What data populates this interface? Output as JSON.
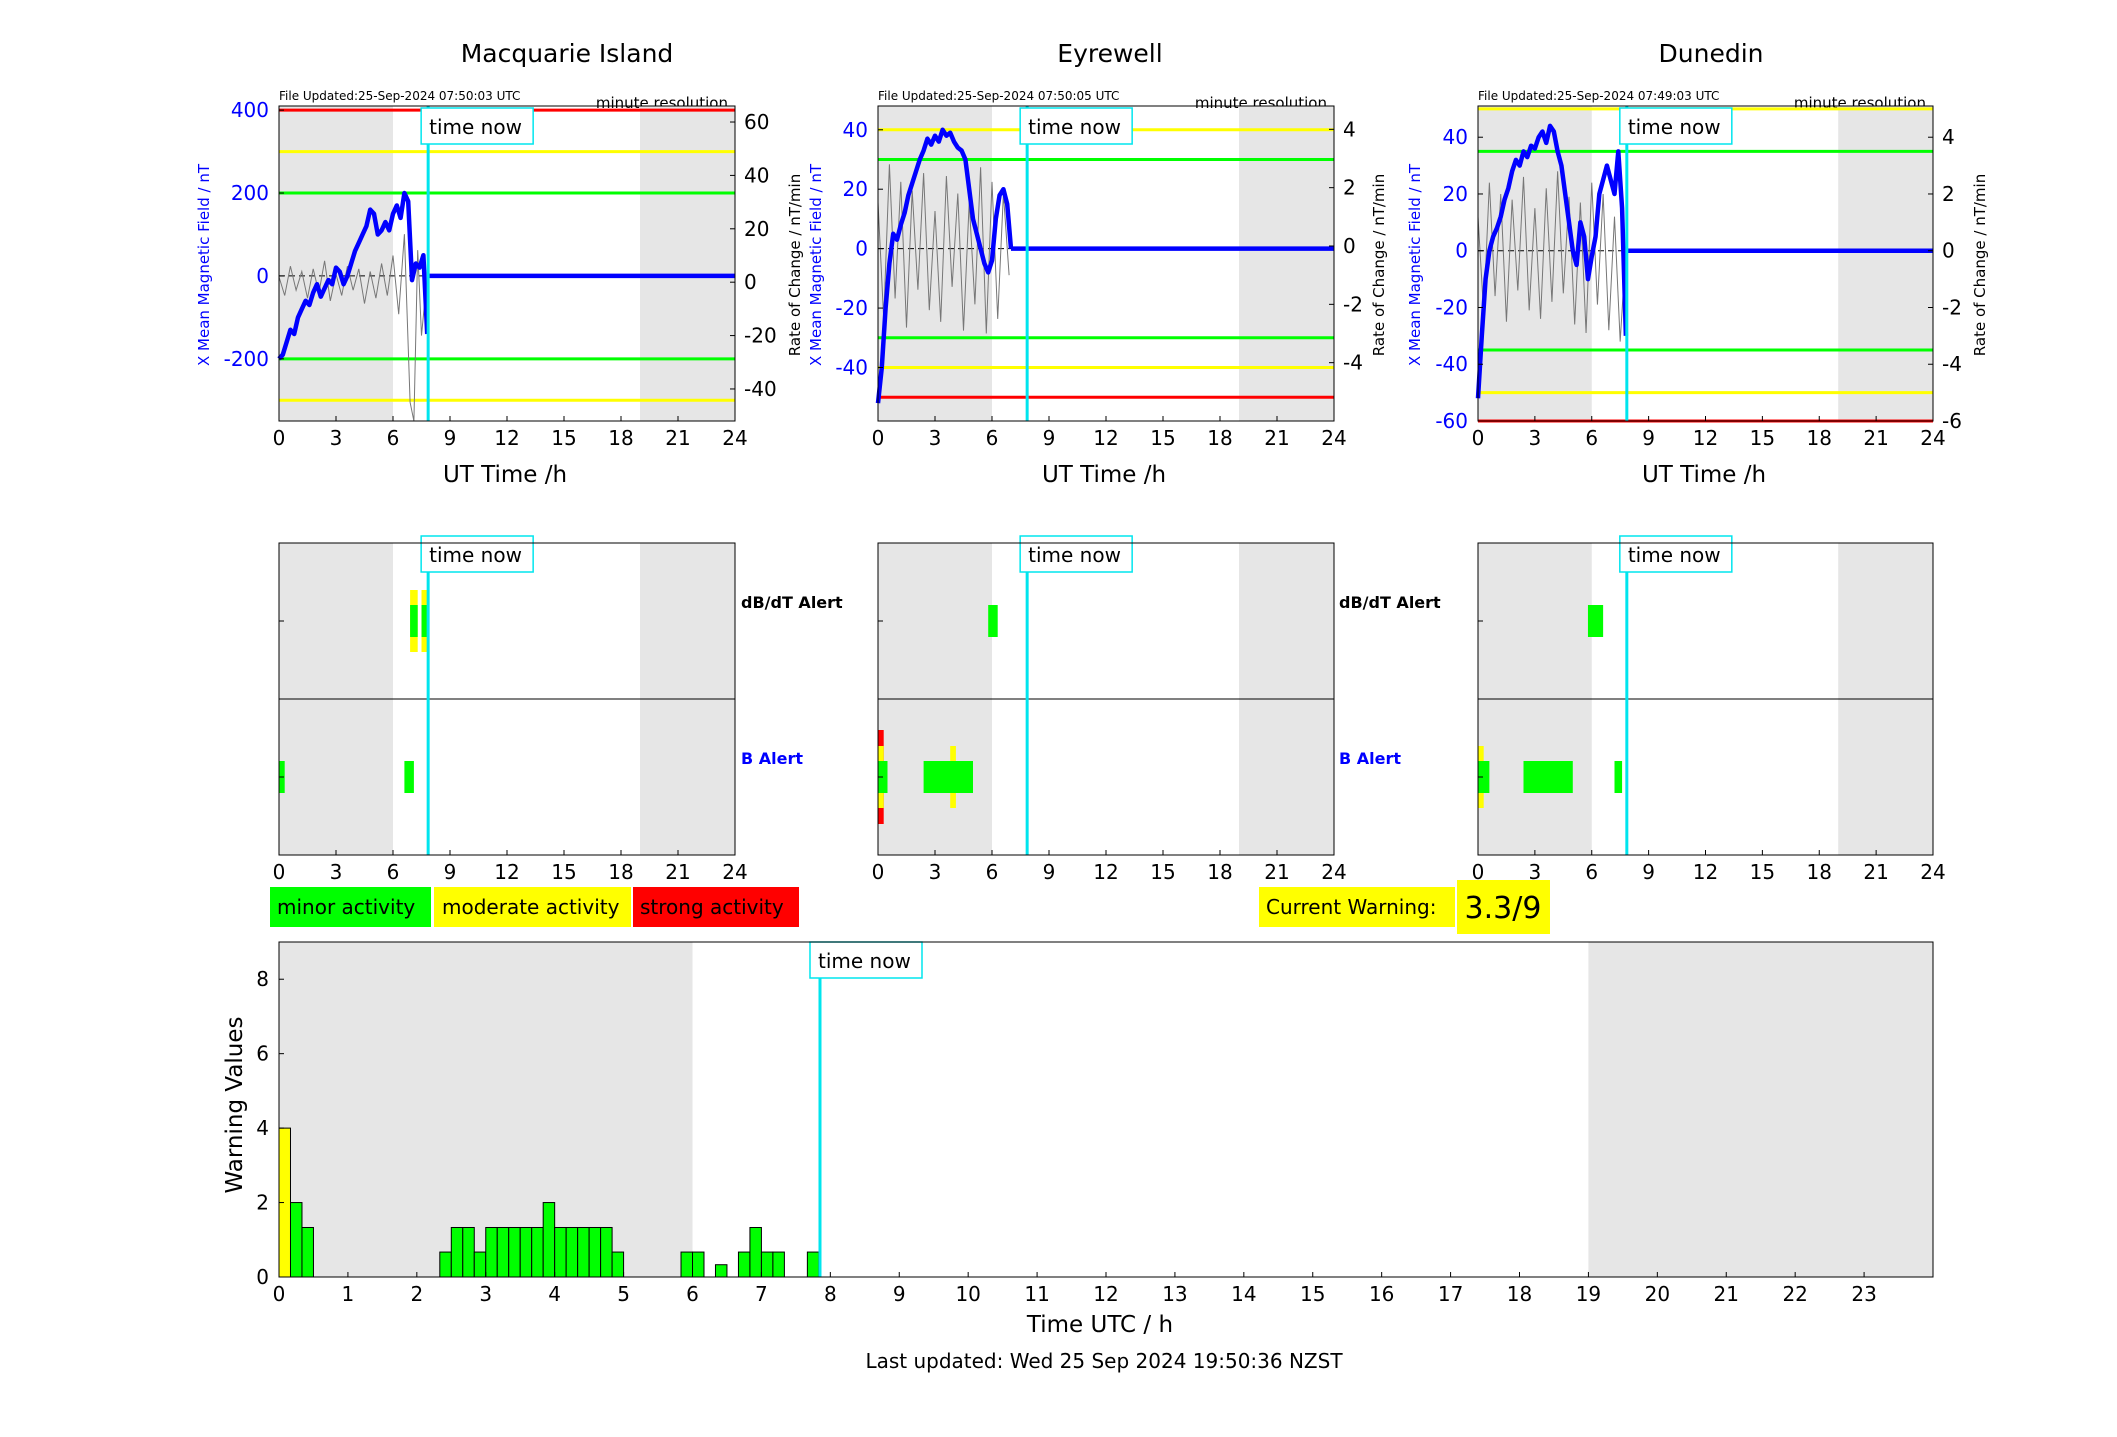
{
  "colors": {
    "minor": "#00ff00",
    "moderate": "#ffff00",
    "strong": "#ff0000",
    "night_shade": "#e6e6e6",
    "time_now_line": "#00e5ee",
    "x_field_line": "#0000ff",
    "rate_line": "#777777"
  },
  "time_now_label": "time now",
  "common": {
    "resolution_label": "minute resolution",
    "xlabel": "UT Time /h",
    "ylabel_left": "X Mean Magnetic Field / nT",
    "ylabel_right": "Rate of Change / nT/min",
    "alert_dbdt_label": "dB/dT Alert",
    "alert_b_label": "B Alert"
  },
  "legend": {
    "minor": "minor activity",
    "moderate": "moderate activity",
    "strong": "strong activity"
  },
  "current_warning": {
    "label": "Current Warning:",
    "value": "3.3/9"
  },
  "footer": {
    "last_updated": "Last updated: Wed 25 Sep 2024 19:50:36 NZST"
  },
  "chart_data": [
    {
      "type": "line",
      "title": "Macquarie Island",
      "file_updated": "File Updated:25-Sep-2024 07:50:03 UTC",
      "xlim": [
        0,
        24
      ],
      "xticks": [
        "0",
        "3",
        "6",
        "9",
        "12",
        "15",
        "18",
        "21",
        "24"
      ],
      "ylim_left": [
        -350,
        410
      ],
      "yticks_left": [
        "-200",
        "0",
        "200",
        "400"
      ],
      "yticks_left_values": [
        -200,
        0,
        200,
        400
      ],
      "ylim_right": [
        -52,
        66
      ],
      "yticks_right": [
        "-40",
        "-20",
        "0",
        "20",
        "40",
        "60"
      ],
      "yticks_right_values": [
        -40,
        -20,
        0,
        20,
        40,
        60
      ],
      "thresholds": [
        {
          "value": 400,
          "color": "#ff0000"
        },
        {
          "value": 300,
          "color": "#ffff00"
        },
        {
          "value": 200,
          "color": "#00ff00"
        },
        {
          "value": -200,
          "color": "#00ff00"
        },
        {
          "value": -300,
          "color": "#ffff00"
        }
      ],
      "night": [
        [
          0,
          6
        ],
        [
          19,
          24
        ]
      ],
      "time_now": 7.85,
      "x_field": {
        "t": [
          0,
          0.2,
          0.4,
          0.6,
          0.8,
          1,
          1.2,
          1.4,
          1.6,
          1.8,
          2,
          2.2,
          2.4,
          2.6,
          2.8,
          3,
          3.2,
          3.4,
          3.6,
          3.8,
          4,
          4.2,
          4.4,
          4.6,
          4.8,
          5,
          5.2,
          5.4,
          5.6,
          5.8,
          6,
          6.2,
          6.4,
          6.6,
          6.8,
          7,
          7.2,
          7.4,
          7.6,
          7.8
        ],
        "v": [
          -200,
          -190,
          -160,
          -130,
          -140,
          -100,
          -80,
          -60,
          -70,
          -40,
          -20,
          -50,
          -30,
          -10,
          -20,
          20,
          10,
          -20,
          0,
          30,
          60,
          80,
          100,
          120,
          160,
          150,
          100,
          110,
          130,
          110,
          150,
          170,
          140,
          200,
          180,
          -10,
          30,
          20,
          50,
          -140
        ]
      },
      "x_field_after": {
        "from": 7.9,
        "to": 24,
        "value": 0
      },
      "rate": {
        "t": [
          0,
          0.3,
          0.6,
          0.9,
          1.2,
          1.5,
          1.8,
          2.1,
          2.4,
          2.7,
          3,
          3.3,
          3.6,
          3.9,
          4.2,
          4.5,
          4.8,
          5.1,
          5.4,
          5.7,
          6,
          6.3,
          6.6,
          6.9,
          7.1,
          7.3,
          7.5,
          7.7
        ],
        "v": [
          2,
          -5,
          6,
          -3,
          4,
          -6,
          5,
          -4,
          8,
          -7,
          3,
          -5,
          6,
          -3,
          5,
          -8,
          4,
          -6,
          7,
          -5,
          10,
          -12,
          18,
          -45,
          -52,
          12,
          -20,
          -5
        ]
      },
      "alerts": {
        "dbdt": [
          {
            "from": 6.9,
            "to": 7.3,
            "level": "minor"
          },
          {
            "from": 7.5,
            "to": 7.8,
            "level": "minor"
          }
        ],
        "dbdt_outline": [
          {
            "from": 6.9,
            "to": 7.3,
            "level": "moderate"
          },
          {
            "from": 7.5,
            "to": 7.8,
            "level": "moderate"
          }
        ],
        "b": [
          {
            "from": 0,
            "to": 0.3,
            "level": "minor"
          },
          {
            "from": 6.6,
            "to": 7.1,
            "level": "minor"
          }
        ]
      }
    },
    {
      "type": "line",
      "title": "Eyrewell",
      "file_updated": "File Updated:25-Sep-2024 07:50:05 UTC",
      "xlim": [
        0,
        24
      ],
      "xticks": [
        "0",
        "3",
        "6",
        "9",
        "12",
        "15",
        "18",
        "21",
        "24"
      ],
      "ylim_left": [
        -58,
        48
      ],
      "yticks_left": [
        "-40",
        "-20",
        "0",
        "20",
        "40"
      ],
      "yticks_left_values": [
        -40,
        -20,
        0,
        20,
        40
      ],
      "ylim_right": [
        -6,
        4.8
      ],
      "yticks_right": [
        "-4",
        "-2",
        "0",
        "2",
        "4"
      ],
      "yticks_right_values": [
        -4,
        -2,
        0,
        2,
        4
      ],
      "thresholds": [
        {
          "value": 40,
          "color": "#ffff00"
        },
        {
          "value": 30,
          "color": "#00ff00"
        },
        {
          "value": -30,
          "color": "#00ff00"
        },
        {
          "value": -40,
          "color": "#ffff00"
        },
        {
          "value": -50,
          "color": "#ff0000"
        }
      ],
      "night": [
        [
          0,
          6
        ],
        [
          19,
          24
        ]
      ],
      "time_now": 7.85,
      "x_field": {
        "t": [
          0,
          0.2,
          0.4,
          0.6,
          0.8,
          1,
          1.2,
          1.4,
          1.6,
          1.8,
          2,
          2.2,
          2.4,
          2.6,
          2.8,
          3,
          3.2,
          3.4,
          3.6,
          3.8,
          4,
          4.2,
          4.4,
          4.6,
          4.8,
          5,
          5.2,
          5.4,
          5.6,
          5.8,
          6,
          6.2,
          6.4,
          6.6,
          6.8,
          7
        ],
        "v": [
          -52,
          -40,
          -20,
          -5,
          5,
          3,
          8,
          12,
          18,
          22,
          26,
          30,
          33,
          37,
          35,
          38,
          36,
          40,
          38,
          39,
          36,
          34,
          33,
          30,
          20,
          10,
          5,
          0,
          -5,
          -8,
          -4,
          10,
          18,
          20,
          15,
          0
        ]
      },
      "x_field_after": {
        "from": 7.0,
        "to": 24,
        "value": 0
      },
      "rate": {
        "t": [
          0,
          0.3,
          0.6,
          0.9,
          1.2,
          1.5,
          1.8,
          2.1,
          2.4,
          2.7,
          3,
          3.3,
          3.6,
          3.9,
          4.2,
          4.5,
          4.8,
          5.1,
          5.4,
          5.7,
          6,
          6.3,
          6.6,
          6.9
        ],
        "v": [
          1.5,
          -2.5,
          2.8,
          -1.8,
          2.2,
          -2.8,
          1.9,
          -1.5,
          2.5,
          -2.2,
          1.2,
          -2.6,
          2.4,
          -1.4,
          1.8,
          -2.9,
          1.5,
          -2.0,
          2.7,
          -3.0,
          2.2,
          -2.5,
          1.8,
          -1.0
        ]
      },
      "alerts": {
        "dbdt": [
          {
            "from": 5.8,
            "to": 6.3,
            "level": "minor"
          }
        ],
        "dbdt_outline": [],
        "b": [
          {
            "from": 0,
            "to": 0.5,
            "level": "minor"
          },
          {
            "from": 2.4,
            "to": 5.0,
            "level": "minor"
          }
        ],
        "b_moderate": [
          {
            "from": 0,
            "to": 0.3,
            "level": "moderate"
          },
          {
            "from": 3.8,
            "to": 4.1,
            "level": "moderate"
          }
        ],
        "b_strong": [
          {
            "from": 0,
            "to": 0.3,
            "level": "strong"
          }
        ]
      }
    },
    {
      "type": "line",
      "title": "Dunedin",
      "file_updated": "File Updated:25-Sep-2024 07:49:03 UTC",
      "xlim": [
        0,
        24
      ],
      "xticks": [
        "0",
        "3",
        "6",
        "9",
        "12",
        "15",
        "18",
        "21",
        "24"
      ],
      "ylim_left": [
        -60,
        51
      ],
      "yticks_left": [
        "-60",
        "-40",
        "-20",
        "0",
        "20",
        "40"
      ],
      "yticks_left_values": [
        -60,
        -40,
        -20,
        0,
        20,
        40
      ],
      "ylim_right": [
        -6,
        5.1
      ],
      "yticks_right": [
        "-6",
        "-4",
        "-2",
        "0",
        "2",
        "4"
      ],
      "yticks_right_values": [
        -6,
        -4,
        -2,
        0,
        2,
        4
      ],
      "thresholds": [
        {
          "value": 50,
          "color": "#ffff00"
        },
        {
          "value": 35,
          "color": "#00ff00"
        },
        {
          "value": -35,
          "color": "#00ff00"
        },
        {
          "value": -50,
          "color": "#ffff00"
        },
        {
          "value": -60,
          "color": "#ff0000"
        }
      ],
      "night": [
        [
          0,
          6
        ],
        [
          19,
          24
        ]
      ],
      "time_now": 7.85,
      "x_field": {
        "t": [
          0,
          0.2,
          0.4,
          0.6,
          0.8,
          1,
          1.2,
          1.4,
          1.6,
          1.8,
          2,
          2.2,
          2.4,
          2.6,
          2.8,
          3,
          3.2,
          3.4,
          3.6,
          3.8,
          4,
          4.2,
          4.4,
          4.6,
          4.8,
          5,
          5.2,
          5.4,
          5.6,
          5.8,
          6,
          6.2,
          6.4,
          6.6,
          6.8,
          7,
          7.2,
          7.4,
          7.6,
          7.8
        ],
        "v": [
          -52,
          -30,
          -10,
          0,
          5,
          8,
          12,
          18,
          22,
          28,
          32,
          30,
          35,
          33,
          37,
          36,
          40,
          42,
          38,
          44,
          42,
          35,
          30,
          20,
          10,
          0,
          -5,
          10,
          5,
          -10,
          -2,
          5,
          20,
          25,
          30,
          25,
          20,
          35,
          15,
          -30
        ]
      },
      "x_field_after": {
        "from": 7.8,
        "to": 24,
        "value": 0
      },
      "rate": {
        "t": [
          0,
          0.3,
          0.6,
          0.9,
          1.2,
          1.5,
          1.8,
          2.1,
          2.4,
          2.7,
          3,
          3.3,
          3.6,
          3.9,
          4.2,
          4.5,
          4.8,
          5.1,
          5.4,
          5.7,
          6,
          6.3,
          6.6,
          6.9,
          7.2,
          7.5,
          7.7
        ],
        "v": [
          1.2,
          -2.2,
          2.4,
          -1.6,
          2.0,
          -2.5,
          1.8,
          -1.4,
          2.6,
          -2.1,
          1.5,
          -2.4,
          2.2,
          -1.8,
          2.8,
          -1.5,
          1.9,
          -2.6,
          1.7,
          -2.9,
          2.4,
          -1.9,
          2.0,
          -2.8,
          1.2,
          -3.2,
          -1.0
        ]
      },
      "alerts": {
        "dbdt": [
          {
            "from": 5.8,
            "to": 6.6,
            "level": "minor"
          }
        ],
        "dbdt_outline": [],
        "b": [
          {
            "from": 0,
            "to": 0.6,
            "level": "minor"
          },
          {
            "from": 2.4,
            "to": 5.0,
            "level": "minor"
          },
          {
            "from": 7.2,
            "to": 7.6,
            "level": "minor"
          }
        ],
        "b_moderate": [
          {
            "from": 0,
            "to": 0.3,
            "level": "moderate"
          }
        ]
      }
    },
    {
      "type": "bar",
      "title": "",
      "xlabel": "Time UTC / h",
      "ylabel": "Warning Values",
      "xlim": [
        0,
        24
      ],
      "xticks": [
        "0",
        "1",
        "2",
        "3",
        "4",
        "5",
        "6",
        "7",
        "8",
        "9",
        "10",
        "11",
        "12",
        "13",
        "14",
        "15",
        "16",
        "17",
        "18",
        "19",
        "20",
        "21",
        "22",
        "23"
      ],
      "ylim": [
        0,
        9
      ],
      "yticks": [
        "0",
        "2",
        "4",
        "6",
        "8"
      ],
      "yticks_values": [
        0,
        2,
        4,
        6,
        8
      ],
      "bar_width_h": 0.1667,
      "night": [
        [
          0,
          6
        ],
        [
          19,
          24
        ]
      ],
      "time_now": 7.85,
      "bars": [
        {
          "t": 0.0,
          "v": 4.0,
          "level": "moderate"
        },
        {
          "t": 0.1667,
          "v": 2.0,
          "level": "minor"
        },
        {
          "t": 0.3333,
          "v": 1.33,
          "level": "minor"
        },
        {
          "t": 2.3333,
          "v": 0.67,
          "level": "minor"
        },
        {
          "t": 2.5,
          "v": 1.33,
          "level": "minor"
        },
        {
          "t": 2.6667,
          "v": 1.33,
          "level": "minor"
        },
        {
          "t": 2.8333,
          "v": 0.67,
          "level": "minor"
        },
        {
          "t": 3.0,
          "v": 1.33,
          "level": "minor"
        },
        {
          "t": 3.1667,
          "v": 1.33,
          "level": "minor"
        },
        {
          "t": 3.3333,
          "v": 1.33,
          "level": "minor"
        },
        {
          "t": 3.5,
          "v": 1.33,
          "level": "minor"
        },
        {
          "t": 3.6667,
          "v": 1.33,
          "level": "minor"
        },
        {
          "t": 3.8333,
          "v": 2.0,
          "level": "minor"
        },
        {
          "t": 4.0,
          "v": 1.33,
          "level": "minor"
        },
        {
          "t": 4.1667,
          "v": 1.33,
          "level": "minor"
        },
        {
          "t": 4.3333,
          "v": 1.33,
          "level": "minor"
        },
        {
          "t": 4.5,
          "v": 1.33,
          "level": "minor"
        },
        {
          "t": 4.6667,
          "v": 1.33,
          "level": "minor"
        },
        {
          "t": 4.8333,
          "v": 0.67,
          "level": "minor"
        },
        {
          "t": 5.8333,
          "v": 0.67,
          "level": "minor"
        },
        {
          "t": 6.0,
          "v": 0.67,
          "level": "minor"
        },
        {
          "t": 6.3333,
          "v": 0.33,
          "level": "minor"
        },
        {
          "t": 6.6667,
          "v": 0.67,
          "level": "minor"
        },
        {
          "t": 6.8333,
          "v": 1.33,
          "level": "minor"
        },
        {
          "t": 7.0,
          "v": 0.67,
          "level": "minor"
        },
        {
          "t": 7.1667,
          "v": 0.67,
          "level": "minor"
        },
        {
          "t": 7.6667,
          "v": 0.67,
          "level": "minor"
        }
      ]
    }
  ]
}
